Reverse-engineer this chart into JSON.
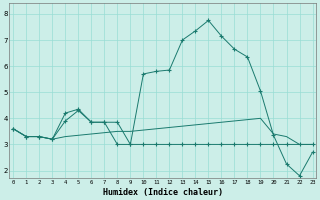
{
  "xlabel": "Humidex (Indice chaleur)",
  "bg_color": "#cceee8",
  "grid_color": "#99ddd5",
  "line_color": "#1a7a6e",
  "x_ticks": [
    0,
    1,
    2,
    3,
    4,
    5,
    6,
    7,
    8,
    9,
    10,
    11,
    12,
    13,
    14,
    15,
    16,
    17,
    18,
    19,
    20,
    21,
    22,
    23
  ],
  "y_ticks": [
    2,
    3,
    4,
    5,
    6,
    7,
    8
  ],
  "ylim": [
    1.7,
    8.4
  ],
  "xlim": [
    -0.3,
    23.3
  ],
  "series": [
    {
      "y": [
        3.6,
        3.3,
        3.3,
        3.2,
        3.9,
        4.3,
        3.85,
        3.85,
        3.0,
        3.0,
        5.7,
        5.8,
        5.85,
        7.0,
        7.35,
        7.75,
        7.15,
        6.65,
        6.35,
        5.05,
        3.35,
        2.25,
        1.8,
        2.7
      ],
      "marker": true
    },
    {
      "y": [
        3.6,
        3.3,
        3.3,
        3.2,
        4.2,
        4.35,
        3.85,
        3.85,
        3.85,
        3.0,
        3.0,
        3.0,
        3.0,
        3.0,
        3.0,
        3.0,
        3.0,
        3.0,
        3.0,
        3.0,
        3.0,
        3.0,
        3.0,
        3.0
      ],
      "marker": true
    },
    {
      "y": [
        3.6,
        3.3,
        3.3,
        3.2,
        3.3,
        3.35,
        3.4,
        3.45,
        3.5,
        3.5,
        3.55,
        3.6,
        3.65,
        3.7,
        3.75,
        3.8,
        3.85,
        3.9,
        3.95,
        4.0,
        3.4,
        3.3,
        3.0,
        3.0
      ],
      "marker": false
    }
  ]
}
